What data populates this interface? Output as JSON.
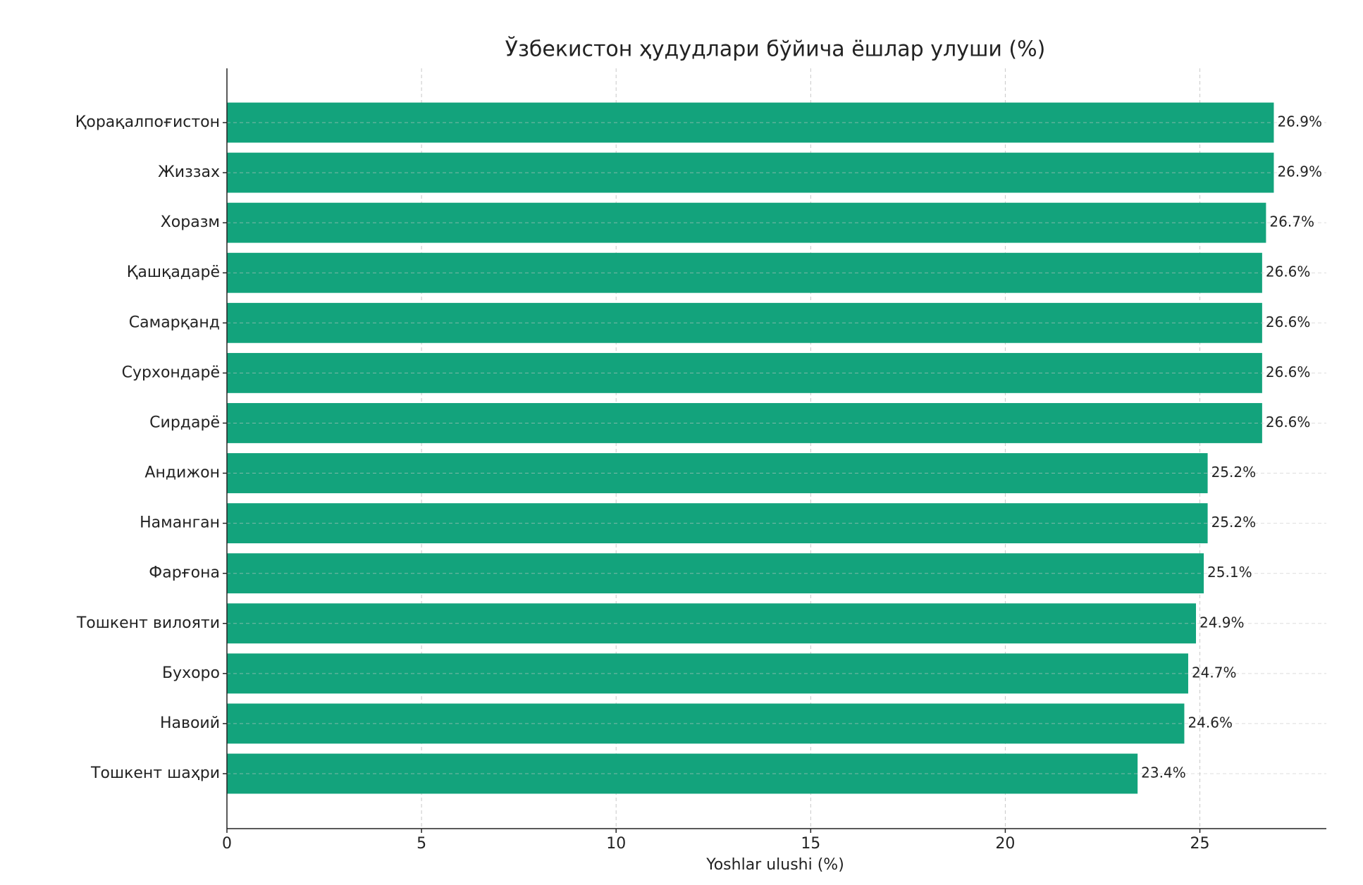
{
  "chart_data": {
    "type": "bar",
    "orientation": "horizontal",
    "title": "Ўзбекистон ҳудудлари бўйича ёшлар улуши (%)",
    "x_label": "Yoshlar ulushi (%)",
    "categories": [
      "Қорақалпоғистон",
      "Жиззах",
      "Хоразм",
      "Қашқадарё",
      "Самарқанд",
      "Сурхондарё",
      "Сирдарё",
      "Андижон",
      "Наманган",
      "Фарғона",
      "Тошкент вилояти",
      "Бухоро",
      "Навоий",
      "Тошкент шаҳри"
    ],
    "values": [
      26.9,
      26.9,
      26.7,
      26.6,
      26.6,
      26.6,
      26.6,
      25.2,
      25.2,
      25.1,
      24.9,
      24.7,
      24.6,
      23.4
    ],
    "value_labels": [
      "26.9%",
      "26.9%",
      "26.7%",
      "26.6%",
      "26.6%",
      "26.6%",
      "26.6%",
      "25.2%",
      "25.2%",
      "25.1%",
      "24.9%",
      "24.7%",
      "24.6%",
      "23.4%"
    ],
    "color": "#13a37c",
    "xlim": [
      0,
      28.25
    ],
    "xticks": [
      0,
      5,
      10,
      15,
      20,
      25
    ],
    "grid": true
  }
}
